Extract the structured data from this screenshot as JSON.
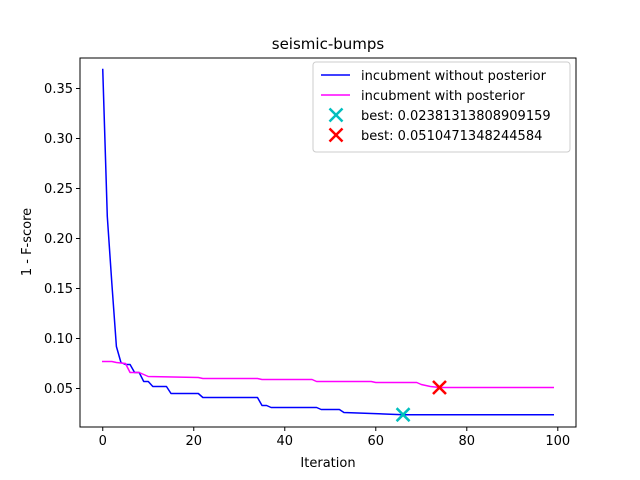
{
  "chart_data": {
    "type": "line",
    "title": "seismic-bumps",
    "xlabel": "Iteration",
    "ylabel": "1 - F-score",
    "xlim": [
      -5,
      104
    ],
    "ylim": [
      0.0115,
      0.3805
    ],
    "xticks": [
      0,
      20,
      40,
      60,
      80,
      100
    ],
    "xtick_labels": [
      "0",
      "20",
      "40",
      "60",
      "80",
      "100"
    ],
    "yticks": [
      0.05,
      0.1,
      0.15,
      0.2,
      0.25,
      0.3,
      0.35
    ],
    "ytick_labels": [
      "0.05",
      "0.10",
      "0.15",
      "0.20",
      "0.25",
      "0.30",
      "0.35"
    ],
    "grid": false,
    "legend_position": "top-right",
    "series": [
      {
        "name": "incubment without posterior",
        "color": "#0000ff",
        "drawstyle": "line",
        "x": [
          0,
          1,
          2,
          3,
          4,
          5,
          6,
          7,
          8,
          9,
          10,
          11,
          13,
          14,
          15,
          21,
          22,
          34,
          35,
          36,
          37,
          47,
          48,
          52,
          53,
          66,
          99
        ],
        "y": [
          0.369,
          0.222,
          0.155,
          0.092,
          0.076,
          0.074,
          0.074,
          0.066,
          0.066,
          0.057,
          0.057,
          0.052,
          0.052,
          0.052,
          0.045,
          0.045,
          0.041,
          0.041,
          0.033,
          0.033,
          0.031,
          0.031,
          0.029,
          0.029,
          0.026,
          0.0238,
          0.0238
        ]
      },
      {
        "name": "incubment with posterior",
        "color": "#ff00ff",
        "drawstyle": "line",
        "x": [
          0,
          2,
          3,
          5,
          6,
          7,
          8,
          9,
          10,
          21,
          22,
          34,
          35,
          44,
          46,
          47,
          59,
          60,
          69,
          70,
          72,
          74,
          99
        ],
        "y": [
          0.077,
          0.077,
          0.076,
          0.075,
          0.066,
          0.066,
          0.066,
          0.064,
          0.062,
          0.061,
          0.06,
          0.06,
          0.059,
          0.059,
          0.059,
          0.057,
          0.057,
          0.056,
          0.056,
          0.054,
          0.052,
          0.051,
          0.051
        ]
      }
    ],
    "markers": [
      {
        "label": "best: 0.02381313808909159",
        "x": 66,
        "y": 0.0238131380890916,
        "color": "#00bfbf",
        "marker": "x"
      },
      {
        "label": "best: 0.0510471348244584",
        "x": 74,
        "y": 0.0510471348244584,
        "color": "#ff0000",
        "marker": "x"
      }
    ]
  }
}
